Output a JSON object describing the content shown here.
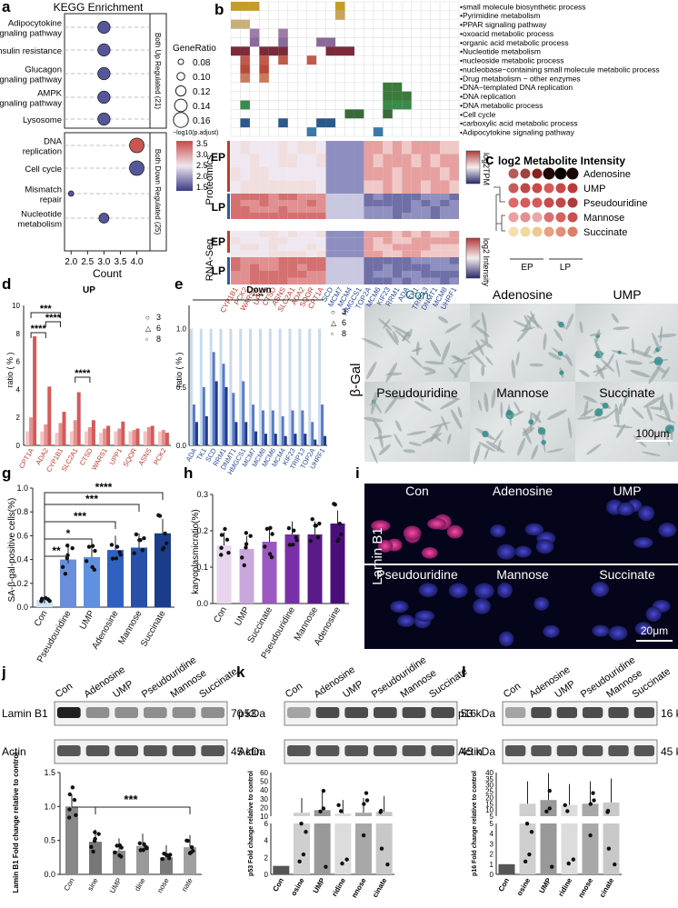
{
  "panel_labels": [
    "a",
    "b",
    "c",
    "d",
    "e",
    "f",
    "g",
    "h",
    "i",
    "j",
    "k",
    "l"
  ],
  "panel_a": {
    "title": "KEGG Enrichment",
    "pathways": [
      "Adipocytokine signaling pathway",
      "Insulin resistance",
      "Glucagon signaling pathway",
      "AMPK signaling pathway",
      "Lysosome",
      "DNA replication",
      "Cell cycle",
      "Mismatch repair",
      "Nucleotide metabolism"
    ],
    "pathway_lines": [
      [
        "Adipocytokine",
        "signaling pathway"
      ],
      [
        "Insulin resistance"
      ],
      [
        "Glucagon",
        "signaling pathway"
      ],
      [
        "AMPK",
        "signaling pathway"
      ],
      [
        "Lysosome"
      ],
      [
        "DNA",
        "replication"
      ],
      [
        "Cell cycle"
      ],
      [
        "Mismatch",
        "repair"
      ],
      [
        "Nucleotide",
        "metabolism"
      ]
    ],
    "group_up": "Both Up Regulated (21)",
    "group_down": "Both Down Regulated (25)",
    "xlabel": "Count",
    "xticks": [
      "2.0",
      "2.5",
      "3.0",
      "3.5",
      "4.0"
    ],
    "legend_title": "GeneRatio",
    "legend_values": [
      "0.08",
      "0.10",
      "0.12",
      "0.14",
      "0.16"
    ],
    "colorbar_title": "−log10(p.adjust)",
    "colorbar_ticks": [
      "3.5",
      "3.0",
      "2.5",
      "2.0",
      "1.5"
    ]
  },
  "chart_data": [
    {
      "type": "scatter",
      "panel": "a",
      "title": "KEGG Enrichment",
      "xlabel": "Count",
      "xlim": [
        1.8,
        4.4
      ],
      "categories": [
        "Adipocytokine signaling pathway",
        "Insulin resistance",
        "Glucagon signaling pathway",
        "AMPK signaling pathway",
        "Lysosome",
        "DNA replication",
        "Cell cycle",
        "Mismatch repair",
        "Nucleotide metabolism"
      ],
      "x": [
        3,
        3,
        3,
        3,
        3,
        4,
        4,
        2,
        3
      ],
      "gene_ratio": [
        0.14,
        0.14,
        0.14,
        0.14,
        0.14,
        0.16,
        0.16,
        0.08,
        0.12
      ],
      "neg_log10_padj": [
        1.6,
        1.6,
        1.6,
        1.6,
        1.6,
        3.6,
        1.7,
        1.6,
        1.6
      ]
    },
    {
      "type": "bar",
      "panel": "d",
      "title": "UP",
      "ylabel": "ratio ( % )",
      "ylim": [
        0,
        10
      ],
      "categories": [
        "CPT1A",
        "ADA2",
        "CYP1B1",
        "SLC2A1",
        "CTSD",
        "WARS1",
        "UPP1",
        "SQOR",
        "ASNS",
        "PCK2"
      ],
      "series": [
        {
          "name": "3",
          "values": [
            1.0,
            1.0,
            0.9,
            1.0,
            1.0,
            0.9,
            1.0,
            1.0,
            1.0,
            1.0
          ]
        },
        {
          "name": "6",
          "values": [
            2.0,
            1.5,
            1.6,
            1.8,
            1.3,
            1.2,
            1.2,
            1.1,
            1.3,
            1.1
          ]
        },
        {
          "name": "8",
          "values": [
            7.8,
            4.2,
            2.4,
            3.8,
            1.8,
            1.4,
            1.7,
            1.2,
            1.4,
            0.9
          ]
        }
      ],
      "significance": [
        "****",
        "****",
        "***",
        "****"
      ]
    },
    {
      "type": "bar",
      "panel": "e",
      "title": "Down",
      "ylabel": "ratio ( % )",
      "ylim": [
        0,
        1.2
      ],
      "categories": [
        "ADA",
        "TK1",
        "SCD",
        "RRM1",
        "DNMT1",
        "HMGCS1",
        "MCM7",
        "MCM8",
        "MCM6",
        "MCM4",
        "KIF23",
        "TRIP13",
        "TOP2A",
        "UHRF1"
      ],
      "series": [
        {
          "name": "3",
          "values": [
            1.0,
            1.0,
            1.0,
            1.0,
            1.0,
            1.0,
            1.0,
            1.0,
            1.0,
            1.0,
            1.0,
            1.0,
            1.0,
            1.0
          ]
        },
        {
          "name": "6",
          "values": [
            0.35,
            0.5,
            0.8,
            0.7,
            0.45,
            0.55,
            0.35,
            0.3,
            0.3,
            0.25,
            0.3,
            0.3,
            0.2,
            0.35
          ]
        },
        {
          "name": "8",
          "values": [
            0.2,
            0.25,
            0.55,
            0.5,
            0.2,
            0.2,
            0.12,
            0.1,
            0.1,
            0.08,
            0.1,
            0.1,
            0.05,
            0.08
          ]
        }
      ],
      "significance": [
        "****"
      ]
    },
    {
      "type": "bar",
      "panel": "g",
      "ylabel": "SA-β-gal-positive cells(%)",
      "ylim": [
        0,
        1.0
      ],
      "yticks": [
        "0.0",
        "0.2",
        "0.4",
        "0.6",
        "0.8",
        "1.0"
      ],
      "categories": [
        "Con",
        "Pseudouridine",
        "UMP",
        "Adenosine",
        "Mannose",
        "Succinate"
      ],
      "values": [
        0.06,
        0.4,
        0.42,
        0.48,
        0.5,
        0.62
      ],
      "significance": [
        "**",
        "*",
        "***",
        "***",
        "****"
      ]
    },
    {
      "type": "bar",
      "panel": "h",
      "ylabel": "karyoplasmicratio(%)",
      "ylim": [
        0,
        0.3
      ],
      "yticks": [
        "0.0",
        "0.1",
        "0.2",
        "0.3"
      ],
      "categories": [
        "Con",
        "UMP",
        "Succinate",
        "Pseudouridine",
        "Mannose",
        "Adenosine"
      ],
      "values": [
        0.16,
        0.15,
        0.17,
        0.19,
        0.19,
        0.22
      ]
    },
    {
      "type": "bar",
      "panel": "j",
      "ylabel": "Lamin B1\nFold change relative to control",
      "ylim": [
        0,
        1.5
      ],
      "yticks": [
        "0.0",
        "0.5",
        "1.0",
        "1.5"
      ],
      "categories": [
        "Con",
        "sine",
        "UMP",
        "dine",
        "nose",
        "nate"
      ],
      "values": [
        1.0,
        0.48,
        0.35,
        0.42,
        0.25,
        0.4
      ],
      "significance": [
        "***"
      ]
    },
    {
      "type": "bar",
      "panel": "k",
      "ylabel": "p53\nFold change relative to control",
      "ylim": [
        0,
        60
      ],
      "yticks_upper": [
        "10",
        "20",
        "30",
        "40",
        "50",
        "60"
      ],
      "yticks_lower": [
        "0",
        "2",
        "4",
        "6"
      ],
      "categories": [
        "Con",
        "osine",
        "UMP",
        "ridine",
        "nnose",
        "cinate"
      ],
      "values": [
        1.0,
        14,
        17,
        13,
        14,
        15
      ]
    },
    {
      "type": "bar",
      "panel": "l",
      "ylabel": "p16\nFold change relative to control",
      "ylim": [
        0,
        40
      ],
      "yticks_upper": [
        "5",
        "10",
        "15",
        "20",
        "25",
        "30",
        "35",
        "40"
      ],
      "yticks_lower": [
        "0",
        "1",
        "2",
        "3",
        "4",
        "5"
      ],
      "categories": [
        "Con",
        "osine",
        "UMP",
        "ridine",
        "nnose",
        "cinate"
      ],
      "values": [
        1.0,
        15,
        18,
        14,
        15,
        16
      ]
    }
  ],
  "panel_b": {
    "go_terms": [
      "small molecule biosynthetic process",
      "Pyrimidine metabolism",
      "PPAR signaling pathway",
      "oxoacid metabolic process",
      "organic acid metabolic process",
      "Nucleotide metabolism",
      "nucleoside metabolic process",
      "nucleobase−containing small molecule metabolic process",
      "Drug metabolism − other enzymes",
      "DNA−templated DNA replication",
      "DNA replication",
      "DNA metabolic process",
      "Cell cycle",
      "carboxylic acid metabolic process",
      "Adipocytokine signaling pathway"
    ],
    "row_labels": [
      "Proteomics",
      "RNA-Seq"
    ],
    "group_labels": [
      "EP",
      "LP",
      "EP",
      "LP"
    ],
    "legend_top": "log2TPM",
    "legend_bottom": "log2 Intensity",
    "genes_up": [
      "CYP1B1",
      "PCK2",
      "WARS1",
      "UPP1",
      "CTSD",
      "ASNS",
      "SLC2A1",
      "ADA2",
      "SQOR",
      "CPT1A"
    ],
    "genes_down": [
      "SCD",
      "MCM7",
      "MCM4",
      "HMGCS1",
      "TOP2A",
      "MCM6",
      "KIF23",
      "RRM1",
      "ADA",
      "TK1",
      "TRIP13",
      "DNMT1",
      "MCM8",
      "UHRF1"
    ]
  },
  "panel_c": {
    "title": "log2 Metabolite Intensity",
    "metabolites": [
      "Adenosine",
      "UMP",
      "Pseudouridine",
      "Mannose",
      "Succinate"
    ],
    "groups": [
      "EP",
      "LP"
    ]
  },
  "panel_d": {
    "title": "UP",
    "legend": [
      "3",
      "6",
      "8"
    ]
  },
  "panel_e": {
    "title": "Down",
    "legend": [
      "3",
      "6",
      "8"
    ],
    "sig": "****"
  },
  "panel_f": {
    "labels": [
      "Con",
      "Adenosine",
      "UMP",
      "Pseudouridine",
      "Mannose",
      "Succinate"
    ],
    "side_label": "β-Gal",
    "scale": "100μm"
  },
  "panel_i": {
    "labels": [
      "Con",
      "Adenosine",
      "UMP",
      "Pseudouridine",
      "Mannose",
      "Succinate"
    ],
    "side_label": "Lamin B1",
    "scale": "20μm"
  },
  "panel_j": {
    "lanes": [
      "Con",
      "Adenosine",
      "UMP",
      "Pseudouridine",
      "Mannose",
      "Succinate"
    ],
    "bands": [
      {
        "name": "Lamin B1",
        "kda": "70 kDa"
      },
      {
        "name": "Actin",
        "kda": "45 kDa"
      }
    ]
  },
  "panel_k": {
    "lanes": [
      "Con",
      "Adenosine",
      "UMP",
      "Pseudouridine",
      "Mannose",
      "Succinate"
    ],
    "bands": [
      {
        "name": "p53",
        "kda": "53 kDa"
      },
      {
        "name": "Actin",
        "kda": "45 kDa"
      }
    ]
  },
  "panel_l": {
    "lanes": [
      "Con",
      "Adenosine",
      "UMP",
      "Pseudouridine",
      "Mannose",
      "Succinate"
    ],
    "bands": [
      {
        "name": "p16",
        "kda": "16 kDa"
      },
      {
        "name": "Actin",
        "kda": "45 kDa"
      }
    ]
  }
}
